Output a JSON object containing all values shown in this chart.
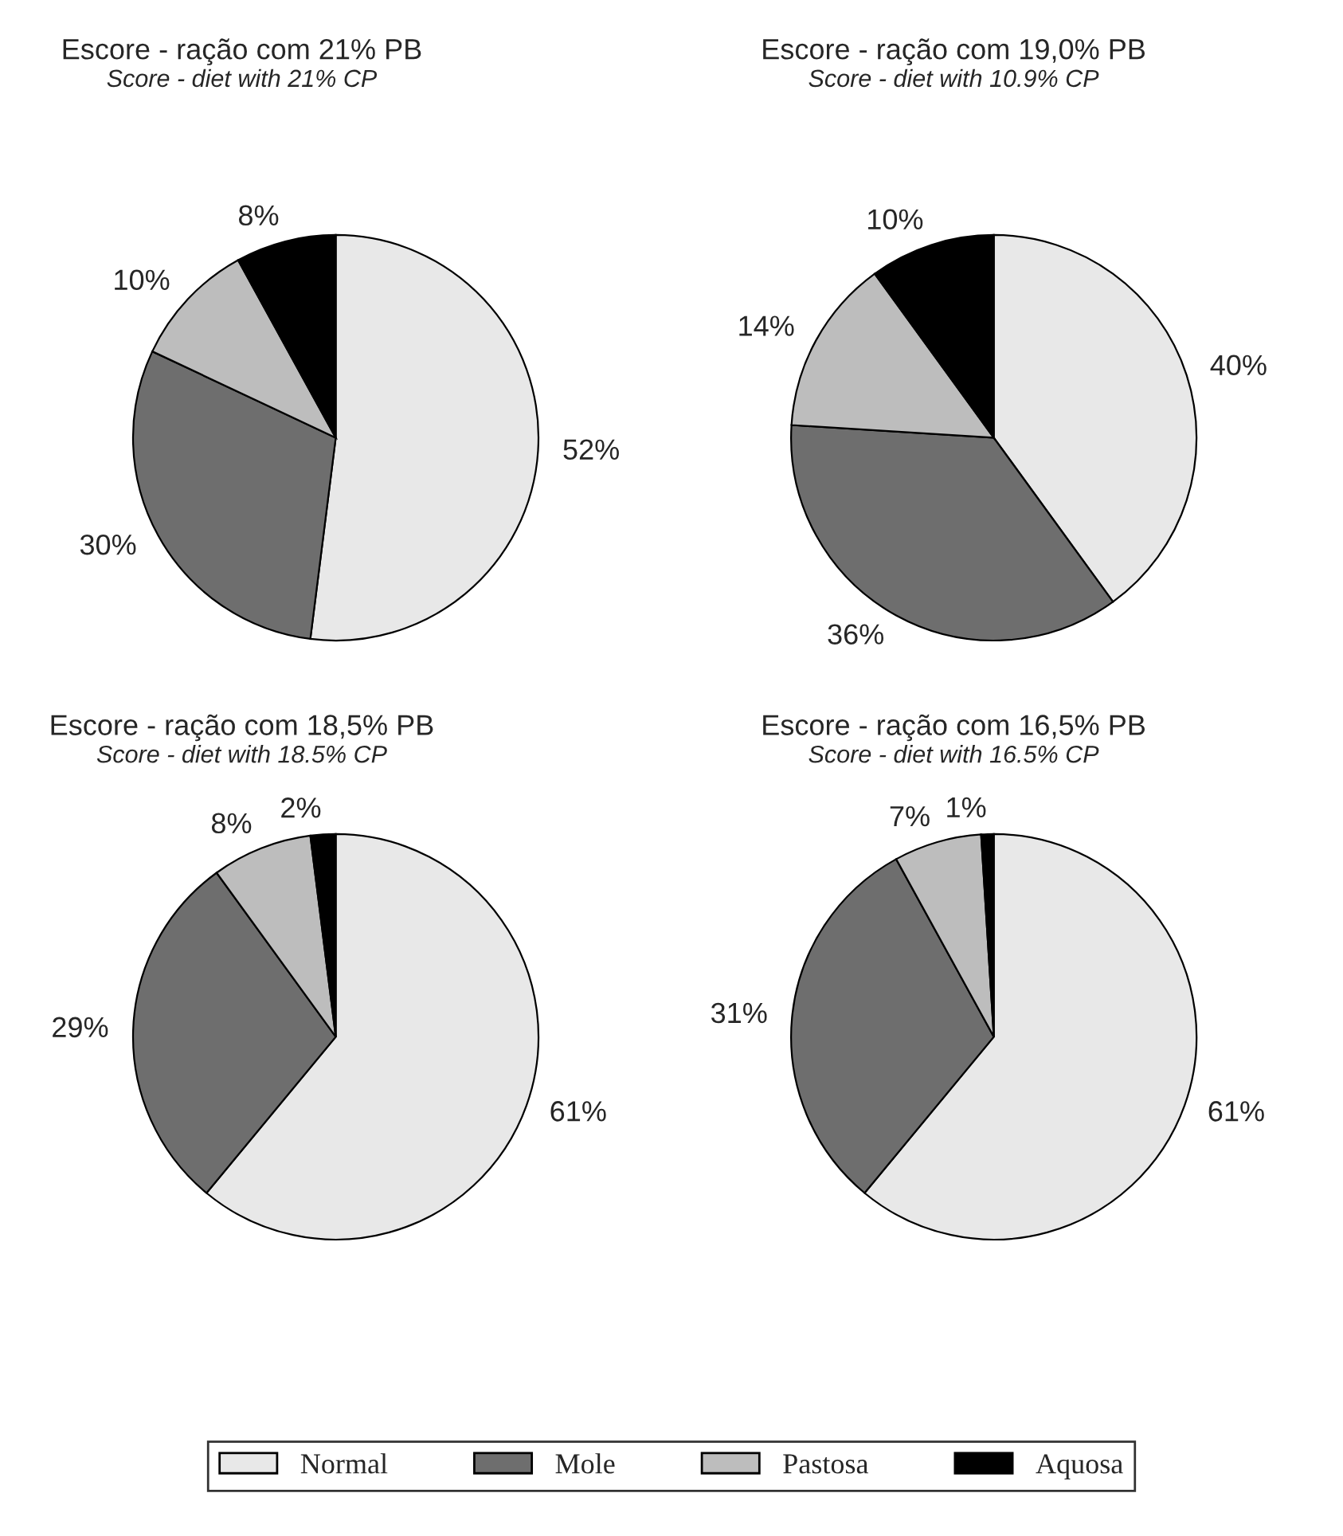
{
  "chart_data": [
    {
      "type": "pie",
      "title": "Escore - ração com 21% PB",
      "subtitle": "Score - diet with 21% CP",
      "categories": [
        "Normal",
        "Mole",
        "Pastosa",
        "Aquosa"
      ],
      "values": [
        52,
        30,
        10,
        8
      ],
      "value_labels": [
        "52%",
        "30%",
        "10%",
        "8%"
      ],
      "colors": [
        "#e8e8e8",
        "#6e6e6e",
        "#bdbdbd",
        "#000000"
      ],
      "legend": "bottom"
    },
    {
      "type": "pie",
      "title": "Escore - ração com 19,0% PB",
      "subtitle": "Score - diet with 10.9% CP",
      "categories": [
        null,
        null,
        null,
        null
      ],
      "values": [
        40,
        36,
        14,
        10
      ],
      "value_labels": [
        "40%",
        "36%",
        "14%",
        "10%"
      ],
      "colors": [
        "#e8e8e8",
        "#6e6e6e",
        "#bdbdbd",
        "#000000"
      ]
    },
    {
      "type": "pie",
      "title": "Escore - ração com 18,5% PB",
      "subtitle": "Score - diet with 18.5% CP",
      "categories": [
        null,
        null,
        null,
        null
      ],
      "values": [
        61,
        29,
        8,
        2
      ],
      "value_labels": [
        "61%",
        "29%",
        "8%",
        "2%"
      ],
      "colors": [
        "#e8e8e8",
        "#6e6e6e",
        "#bdbdbd",
        "#000000"
      ]
    },
    {
      "type": "pie",
      "title": "Escore - ração com 16,5% PB",
      "subtitle": "Score - diet with 16.5% CP",
      "categories": [
        null,
        null,
        null,
        null
      ],
      "values": [
        61,
        31,
        7,
        1
      ],
      "value_labels": [
        "61%",
        "31%",
        "7%",
        "1%"
      ],
      "colors": [
        "#e8e8e8",
        "#6e6e6e",
        "#bdbdbd",
        "#000000"
      ]
    }
  ]
}
